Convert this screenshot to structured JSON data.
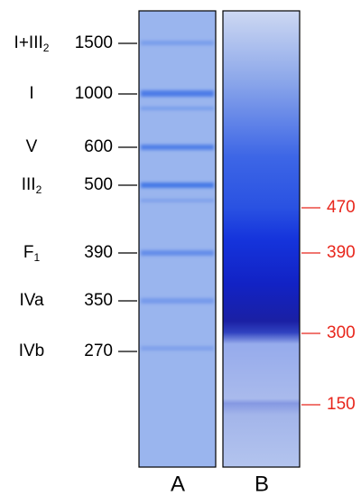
{
  "lane_a_markers": [
    {
      "name": "I+III",
      "sub": "2",
      "size": 1500
    },
    {
      "name": "I",
      "size": 1000
    },
    {
      "name": "V",
      "size": 600
    },
    {
      "name": "III",
      "sub": "2",
      "size": 500
    },
    {
      "name": "F",
      "sub": "1",
      "size": 390
    },
    {
      "name": "IVa",
      "size": 350
    },
    {
      "name": "IVb",
      "size": 270
    }
  ],
  "lane_b_markers": [
    470,
    390,
    300,
    150
  ],
  "lanes": [
    "A",
    "B"
  ]
}
